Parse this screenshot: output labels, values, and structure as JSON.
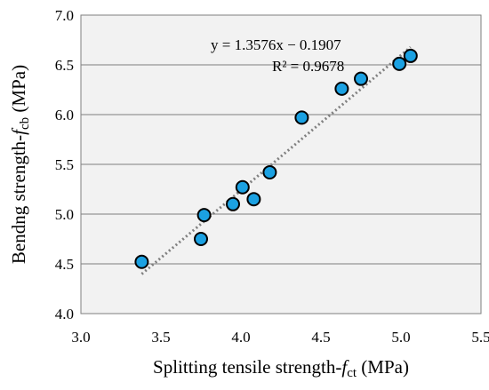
{
  "chart_data": {
    "type": "scatter",
    "xlabel_main": "Splitting tensile strength-",
    "xlabel_var": "f",
    "xlabel_sub": "ct",
    "xlabel_unit": " (MPa)",
    "ylabel_main": "Bendng strength-",
    "ylabel_var": "f",
    "ylabel_sub": "cb",
    "ylabel_unit": " (MPa)",
    "xlim": [
      3.0,
      5.5
    ],
    "ylim": [
      4.0,
      7.0
    ],
    "x_ticks": [
      "3.0",
      "3.5",
      "4.0",
      "4.5",
      "5.0",
      "5.5"
    ],
    "y_ticks": [
      "4.0",
      "4.5",
      "5.0",
      "5.5",
      "6.0",
      "6.5",
      "7.0"
    ],
    "grid": "horizontal",
    "points": [
      {
        "x": 3.38,
        "y": 4.52
      },
      {
        "x": 3.75,
        "y": 4.75
      },
      {
        "x": 3.77,
        "y": 4.99
      },
      {
        "x": 3.95,
        "y": 5.1
      },
      {
        "x": 4.01,
        "y": 5.27
      },
      {
        "x": 4.08,
        "y": 5.15
      },
      {
        "x": 4.18,
        "y": 5.42
      },
      {
        "x": 4.38,
        "y": 5.97
      },
      {
        "x": 4.63,
        "y": 6.26
      },
      {
        "x": 4.75,
        "y": 6.36
      },
      {
        "x": 4.99,
        "y": 6.51
      },
      {
        "x": 5.06,
        "y": 6.59
      }
    ],
    "trendline": {
      "slope": 1.3576,
      "intercept": -0.1907,
      "x_range": [
        3.38,
        5.06
      ],
      "equation": "y = 1.3576x − 0.1907",
      "r2": "R² = 0.9678"
    },
    "colors": {
      "marker_fill": "#1ba1e2",
      "marker_stroke": "#000000",
      "trendline": "#808080",
      "plot_bg": "#f2f2f2",
      "grid": "#7f7f7f",
      "frame": "#7f7f7f"
    }
  }
}
